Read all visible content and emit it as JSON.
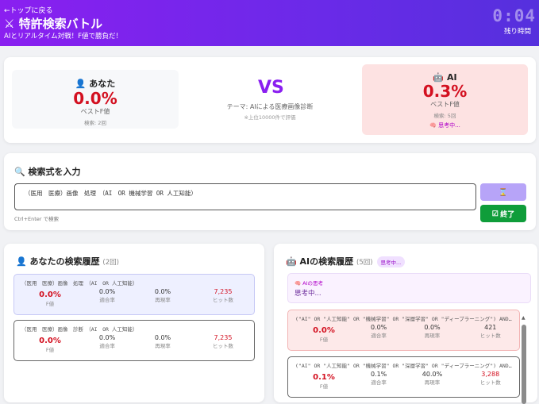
{
  "header": {
    "back": "←トップに戻る",
    "icon": "crossed-swords-icon",
    "title": "特許検索バトル",
    "subtitle": "AIとリアルタイム対戦！F値で勝負だ！",
    "timer": "0:04",
    "timer_label": "残り時間"
  },
  "score": {
    "you": {
      "name": "あなた",
      "value": "0.0%",
      "label": "ベストF値",
      "searches": "検索: 2回"
    },
    "vs": "VS",
    "theme": "テーマ: AIによる医療画像診断",
    "note": "※上位10000件で評価",
    "ai": {
      "name": "AI",
      "value": "0.3%",
      "label": "ベストF値",
      "searches": "検索: 5回",
      "status": "思考中..."
    }
  },
  "search": {
    "title": "検索式を入力",
    "query": "（医用　医療）画像　処理　（AI　OR 機械学習 OR 人工知能）",
    "hint": "Ctrl+Enter で検索",
    "search_button": "⌛",
    "end_button": "終了"
  },
  "labels": {
    "f": "F値",
    "precision": "適合率",
    "recall": "再現率",
    "hits": "ヒット数"
  },
  "your_history": {
    "title": "あなたの検索履歴",
    "count": "(2回)",
    "entries": [
      {
        "query": "（医用　医療）画像　処理　（AI　OR 人工知能）",
        "f": "0.0%",
        "precision": "0.0%",
        "recall": "0.0%",
        "hits": "7,235"
      },
      {
        "query": "（医用　医療）画像　診断　（AI　OR 人工知能）",
        "f": "0.0%",
        "precision": "0.0%",
        "recall": "0.0%",
        "hits": "7,235"
      }
    ]
  },
  "ai_history": {
    "title": "AIの検索履歴",
    "count": "(5回)",
    "badge": "思考中...",
    "thought_title": "AIの思考",
    "thought": "思考中...",
    "entries": [
      {
        "query": "(\"AI\" OR \"人工知能\" OR \"機械学習\" OR \"深層学習\" OR \"ディープラーニング\") AND...",
        "f": "0.0%",
        "precision": "0.0%",
        "recall": "0.0%",
        "hits": "421"
      },
      {
        "query": "(\"AI\" OR \"人工知能\" OR \"機械学習\" OR \"深層学習\" OR \"ディープラーニング\") AND...",
        "f": "0.1%",
        "precision": "0.1%",
        "recall": "40.0%",
        "hits": "3,288"
      }
    ]
  }
}
